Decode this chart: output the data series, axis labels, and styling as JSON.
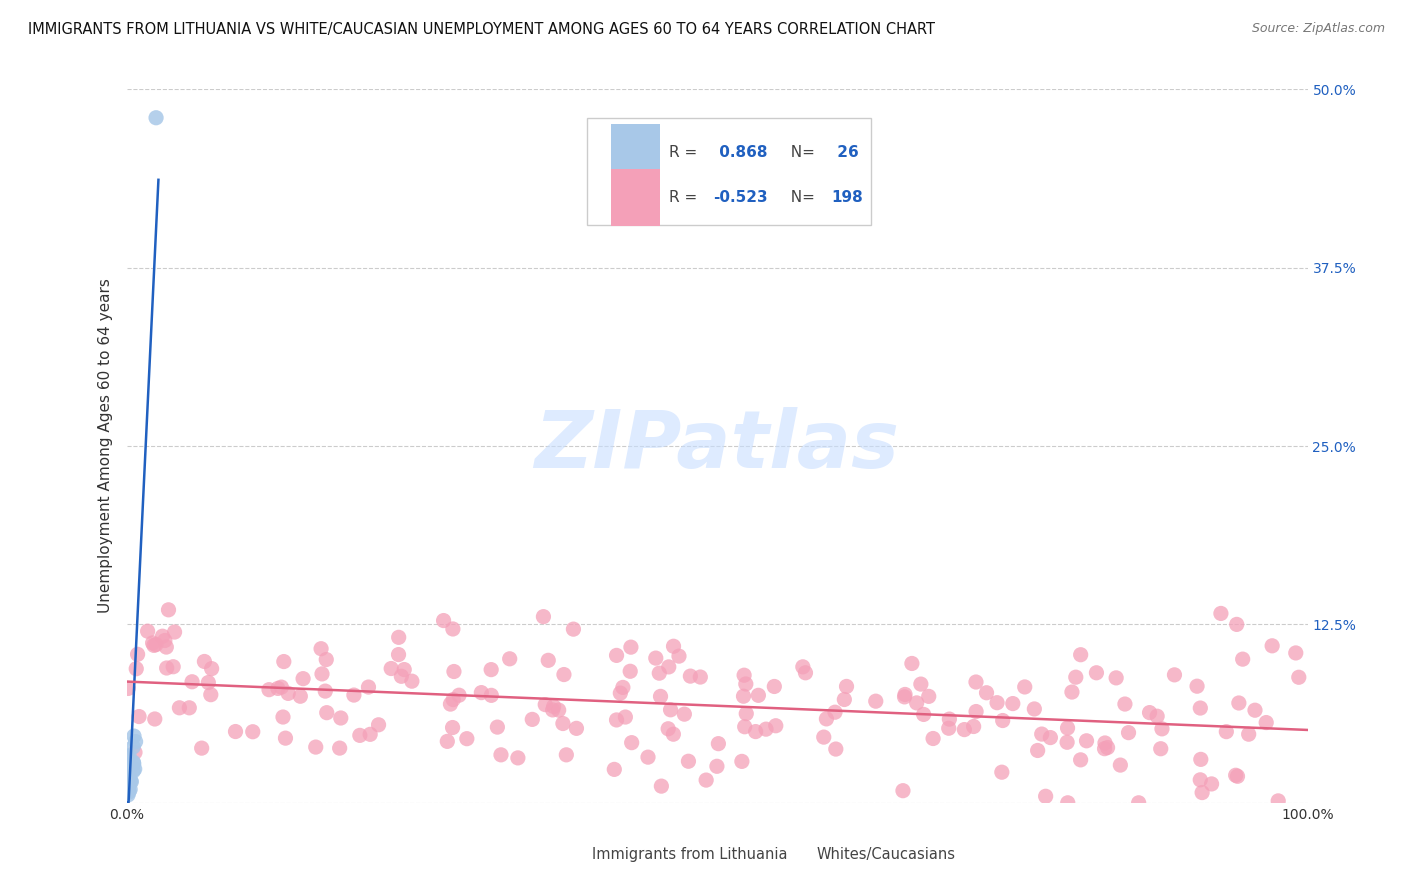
{
  "title": "IMMIGRANTS FROM LITHUANIA VS WHITE/CAUCASIAN UNEMPLOYMENT AMONG AGES 60 TO 64 YEARS CORRELATION CHART",
  "source": "Source: ZipAtlas.com",
  "ylabel": "Unemployment Among Ages 60 to 64 years",
  "xlim": [
    0,
    100
  ],
  "ylim": [
    0,
    50
  ],
  "yticks": [
    0,
    12.5,
    25.0,
    37.5,
    50.0
  ],
  "xticks": [
    0,
    25,
    50,
    75,
    100
  ],
  "blue_R": 0.868,
  "blue_N": 26,
  "pink_R": -0.523,
  "pink_N": 198,
  "blue_color": "#A8C8E8",
  "pink_color": "#F4A0B8",
  "blue_line_color": "#2060C0",
  "pink_line_color": "#E06080",
  "background_color": "#FFFFFF",
  "legend_label_blue": "Immigrants from Lithuania",
  "legend_label_pink": "Whites/Caucasians",
  "grid_color": "#CCCCCC",
  "title_fontsize": 10.5,
  "source_fontsize": 9,
  "axis_label_fontsize": 11,
  "tick_fontsize": 10,
  "legend_fontsize": 11
}
